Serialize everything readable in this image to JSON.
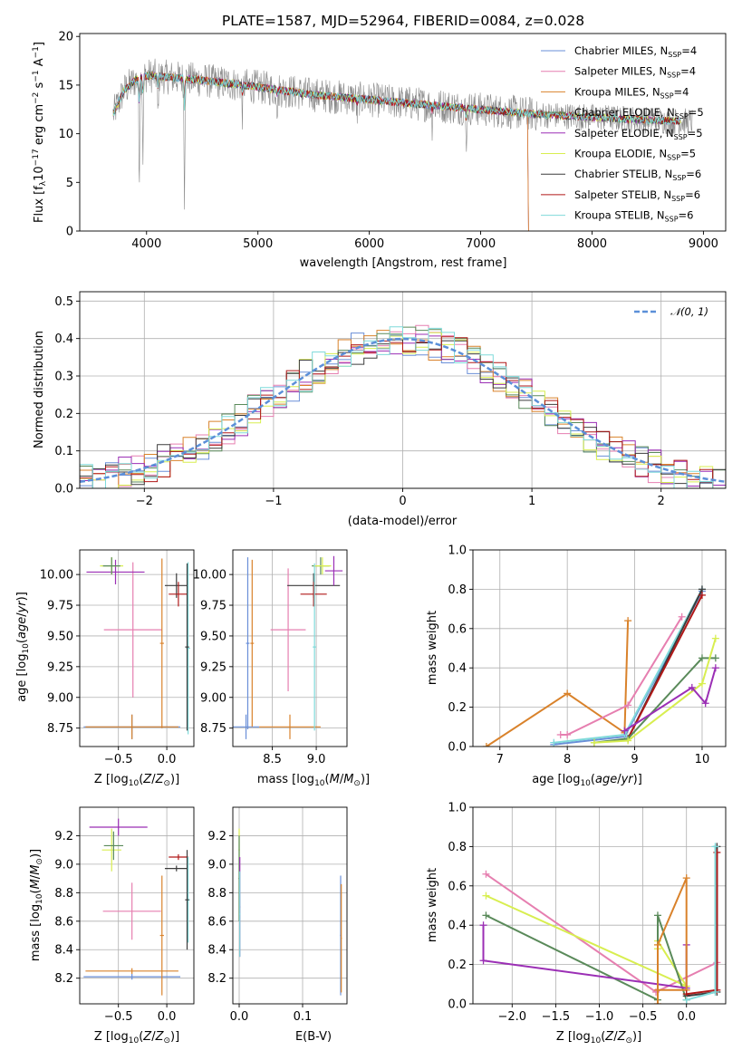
{
  "colors": {
    "Chabrier MILES": "#6a8fd8",
    "Salpeter MILES": "#e67fb0",
    "Kroupa MILES": "#d9822b",
    "Chabrier ELODIE": "#5a8a5a",
    "Salpeter ELODIE": "#9b2fb5",
    "Kroupa ELODIE": "#d8ee50",
    "Chabrier STELIB": "#3c3c3c",
    "Salpeter STELIB": "#b01818",
    "Kroupa STELIB": "#7fdada"
  },
  "chart_data": [
    {
      "id": "spectrum",
      "type": "line",
      "title": "PLATE=1587, MJD=52964, FIBERID=0084, z=0.028",
      "xlabel": "wavelength [Angstrom, rest frame]",
      "ylabel": "Flux [f_λ 10^-17 erg cm^-2 s^-1 A^-1]",
      "xlim": [
        3400,
        9200
      ],
      "ylim": [
        0,
        20.3
      ],
      "xticks": [
        4000,
        5000,
        6000,
        7000,
        8000,
        9000
      ],
      "yticks": [
        0,
        5,
        10,
        15,
        20
      ],
      "grid": false,
      "legend_position": "top-right",
      "legend": [
        {
          "name": "Chabrier MILES",
          "nssp": "4"
        },
        {
          "name": "Salpeter MILES",
          "nssp": "4"
        },
        {
          "name": "Kroupa MILES",
          "nssp": "4"
        },
        {
          "name": "Chabrier ELODIE",
          "nssp": "5"
        },
        {
          "name": "Salpeter ELODIE",
          "nssp": "5"
        },
        {
          "name": "Kroupa ELODIE",
          "nssp": "5"
        },
        {
          "name": "Chabrier STELIB",
          "nssp": "6"
        },
        {
          "name": "Salpeter STELIB",
          "nssp": "6"
        },
        {
          "name": "Kroupa STELIB",
          "nssp": "6"
        }
      ],
      "continuum_x": [
        3700,
        3800,
        3900,
        4000,
        4200,
        4500,
        5000,
        5500,
        6000,
        6500,
        7000,
        7500,
        8000,
        8500,
        9000
      ],
      "continuum_y": [
        12.0,
        14.5,
        15.5,
        16.0,
        15.8,
        15.5,
        14.8,
        14.0,
        13.5,
        13.0,
        12.5,
        12.0,
        11.7,
        11.4,
        11.2
      ]
    },
    {
      "id": "residuals",
      "type": "line",
      "xlabel": "(data-model)/error",
      "ylabel": "Normed distribution",
      "xlim": [
        -2.5,
        2.5
      ],
      "ylim": [
        0,
        0.525
      ],
      "xticks": [
        -2,
        -1,
        0,
        1,
        2
      ],
      "yticks": [
        0.0,
        0.1,
        0.2,
        0.3,
        0.4,
        0.5
      ],
      "grid": true,
      "legend_position": "top-right",
      "reference": {
        "name": "N(0,1)",
        "color": "#5b8fd8"
      }
    },
    {
      "id": "age-vs-Z",
      "type": "scatter",
      "xlabel": "Z [log10(Z/Z_sun)]",
      "ylabel": "age  [log10(age/yr)]",
      "xlim": [
        -0.9,
        0.28
      ],
      "ylim": [
        8.6,
        10.2
      ],
      "xticks": [
        -0.5,
        0.0
      ],
      "yticks": [
        8.75,
        9.0,
        9.25,
        9.5,
        9.75,
        10.0
      ],
      "grid": true,
      "points": [
        {
          "model": "Chabrier MILES",
          "x": -0.36,
          "xerr": 0.5,
          "y": 8.76,
          "yerr": 0.1
        },
        {
          "model": "Kroupa MILES",
          "x": -0.36,
          "xerr": 0.48,
          "y": 8.76,
          "yerr": 0.1
        },
        {
          "model": "Salpeter MILES",
          "x": -0.35,
          "xerr": 0.3,
          "y": 9.55,
          "yerr": 0.55
        },
        {
          "model": "Salpeter ELODIE",
          "x": -0.53,
          "xerr": 0.3,
          "y": 10.02,
          "yerr": 0.1
        },
        {
          "model": "Kroupa ELODIE",
          "x": -0.57,
          "xerr": 0.12,
          "y": 10.07,
          "yerr": 0.07
        },
        {
          "model": "Chabrier ELODIE",
          "x": -0.57,
          "xerr": 0.09,
          "y": 10.07,
          "yerr": 0.07
        },
        {
          "model": "Kroupa MILES",
          "x": -0.05,
          "xerr": 0.02,
          "y": 9.44,
          "yerr": 0.69
        },
        {
          "model": "Chabrier STELIB",
          "x": 0.1,
          "xerr": 0.12,
          "y": 9.91,
          "yerr": 0.1
        },
        {
          "model": "Salpeter STELIB",
          "x": 0.12,
          "xerr": 0.1,
          "y": 9.84,
          "yerr": 0.1
        },
        {
          "model": "Kroupa STELIB",
          "x": 0.22,
          "xerr": 0.02,
          "y": 9.4,
          "yerr": 0.7
        },
        {
          "model": "Chabrier STELIB",
          "x": 0.21,
          "xerr": 0.02,
          "y": 9.41,
          "yerr": 0.68
        }
      ]
    },
    {
      "id": "age-vs-mass",
      "type": "scatter",
      "xlabel": "mass [log10(M/M_sun)]",
      "ylabel": "",
      "xlim": [
        8.05,
        9.35
      ],
      "ylim": [
        8.6,
        10.2
      ],
      "xticks": [
        8.5,
        9.0
      ],
      "yticks": [
        8.75,
        9.0,
        9.25,
        9.5,
        9.75,
        10.0
      ],
      "grid": true,
      "points": [
        {
          "model": "Chabrier MILES",
          "x": 8.2,
          "xerr": 0.15,
          "y": 8.76,
          "yerr": 0.1
        },
        {
          "model": "Kroupa MILES",
          "x": 8.7,
          "xerr": 0.35,
          "y": 8.76,
          "yerr": 0.1
        },
        {
          "model": "Chabrier MILES",
          "x": 8.22,
          "xerr": 0.02,
          "y": 9.44,
          "yerr": 0.7
        },
        {
          "model": "Kroupa MILES",
          "x": 8.27,
          "xerr": 0.02,
          "y": 9.44,
          "yerr": 0.68
        },
        {
          "model": "Salpeter MILES",
          "x": 8.68,
          "xerr": 0.2,
          "y": 9.55,
          "yerr": 0.5
        },
        {
          "model": "Chabrier STELIB",
          "x": 8.97,
          "xerr": 0.3,
          "y": 9.91,
          "yerr": 0.1
        },
        {
          "model": "Salpeter STELIB",
          "x": 8.97,
          "xerr": 0.15,
          "y": 9.84,
          "yerr": 0.1
        },
        {
          "model": "Chabrier ELODIE",
          "x": 9.05,
          "xerr": 0.1,
          "y": 10.07,
          "yerr": 0.07
        },
        {
          "model": "Kroupa ELODIE",
          "x": 9.07,
          "xerr": 0.1,
          "y": 10.07,
          "yerr": 0.07
        },
        {
          "model": "Salpeter ELODIE",
          "x": 9.2,
          "xerr": 0.1,
          "y": 10.03,
          "yerr": 0.12
        },
        {
          "model": "Kroupa STELIB",
          "x": 8.98,
          "xerr": 0.02,
          "y": 9.41,
          "yerr": 0.68
        }
      ]
    },
    {
      "id": "weight-vs-age",
      "type": "line",
      "xlabel": "age  [log10(age/yr)]",
      "ylabel": "mass weight",
      "xlim": [
        6.6,
        10.35
      ],
      "ylim": [
        0,
        1.0
      ],
      "xticks": [
        7,
        8,
        9,
        10
      ],
      "yticks": [
        0.0,
        0.2,
        0.4,
        0.6,
        0.8,
        1.0
      ],
      "grid": true,
      "series": [
        {
          "model": "Kroupa MILES",
          "x": [
            6.8,
            8.0,
            8.85,
            8.9
          ],
          "y": [
            0.0,
            0.27,
            0.07,
            0.64
          ]
        },
        {
          "model": "Salpeter MILES",
          "x": [
            7.9,
            8.0,
            8.9,
            9.7
          ],
          "y": [
            0.06,
            0.06,
            0.21,
            0.66
          ]
        },
        {
          "model": "Chabrier MILES",
          "x": [
            7.8,
            8.85,
            10.0
          ],
          "y": [
            0.01,
            0.05,
            0.79
          ]
        },
        {
          "model": "Kroupa STELIB",
          "x": [
            7.8,
            8.85,
            10.0
          ],
          "y": [
            0.02,
            0.06,
            0.8
          ]
        },
        {
          "model": "Chabrier STELIB",
          "x": [
            8.9,
            10.0
          ],
          "y": [
            0.04,
            0.8
          ]
        },
        {
          "model": "Salpeter STELIB",
          "x": [
            8.9,
            10.0
          ],
          "y": [
            0.04,
            0.77
          ]
        },
        {
          "model": "Chabrier ELODIE",
          "x": [
            8.4,
            8.9,
            10.0,
            10.2
          ],
          "y": [
            0.02,
            0.04,
            0.45,
            0.45
          ]
        },
        {
          "model": "Kroupa ELODIE",
          "x": [
            8.4,
            8.9,
            10.0,
            10.2
          ],
          "y": [
            0.02,
            0.03,
            0.32,
            0.55
          ]
        },
        {
          "model": "Salpeter ELODIE",
          "x": [
            8.85,
            9.85,
            10.05,
            10.2
          ],
          "y": [
            0.08,
            0.3,
            0.22,
            0.4
          ]
        }
      ]
    },
    {
      "id": "mass-vs-Z",
      "type": "scatter",
      "xlabel": "Z [log10(Z/Z_sun)]",
      "ylabel": "mass [log10(M/M_sun)]",
      "xlim": [
        -0.9,
        0.28
      ],
      "ylim": [
        8.02,
        9.4
      ],
      "xticks": [
        -0.5,
        0.0
      ],
      "yticks": [
        8.2,
        8.4,
        8.6,
        8.8,
        9.0,
        9.2
      ],
      "grid": true,
      "points": [
        {
          "model": "Kroupa MILES",
          "x": -0.36,
          "xerr": 0.48,
          "y": 8.25,
          "yerr": 0.02
        },
        {
          "model": "Chabrier MILES",
          "x": -0.36,
          "xerr": 0.5,
          "y": 8.21,
          "yerr": 0.02
        },
        {
          "model": "Salpeter MILES",
          "x": -0.36,
          "xerr": 0.3,
          "y": 8.67,
          "yerr": 0.2
        },
        {
          "model": "Kroupa ELODIE",
          "x": -0.57,
          "xerr": 0.1,
          "y": 9.1,
          "yerr": 0.15
        },
        {
          "model": "Chabrier ELODIE",
          "x": -0.55,
          "xerr": 0.1,
          "y": 9.13,
          "yerr": 0.1
        },
        {
          "model": "Salpeter ELODIE",
          "x": -0.5,
          "xerr": 0.3,
          "y": 9.26,
          "yerr": 0.06
        },
        {
          "model": "Kroupa MILES",
          "x": -0.05,
          "xerr": 0.02,
          "y": 8.5,
          "yerr": 0.42
        },
        {
          "model": "Salpeter STELIB",
          "x": 0.12,
          "xerr": 0.1,
          "y": 9.05,
          "yerr": 0.02
        },
        {
          "model": "Chabrier STELIB",
          "x": 0.1,
          "xerr": 0.12,
          "y": 8.97,
          "yerr": 0.02
        },
        {
          "model": "Kroupa STELIB",
          "x": 0.22,
          "xerr": 0.02,
          "y": 8.75,
          "yerr": 0.3
        },
        {
          "model": "Chabrier STELIB",
          "x": 0.21,
          "xerr": 0.02,
          "y": 8.75,
          "yerr": 0.35
        }
      ]
    },
    {
      "id": "mass-vs-ebv",
      "type": "scatter",
      "xlabel": "E(B-V)",
      "ylabel": "",
      "xlim": [
        -0.01,
        0.17
      ],
      "ylim": [
        8.02,
        9.4
      ],
      "xticks": [
        0.0,
        0.1
      ],
      "yticks": [
        8.2,
        8.4,
        8.6,
        8.8,
        9.0,
        9.2
      ],
      "grid": true,
      "points": [
        {
          "model": "Kroupa ELODIE",
          "x": 0.0,
          "xerr": 0.001,
          "y": 9.1,
          "yerr": 0.15
        },
        {
          "model": "Chabrier ELODIE",
          "x": 0.0,
          "xerr": 0.001,
          "y": 8.9,
          "yerr": 0.3
        },
        {
          "model": "Salpeter ELODIE",
          "x": 0.001,
          "xerr": 0.001,
          "y": 8.7,
          "yerr": 0.35
        },
        {
          "model": "Kroupa STELIB",
          "x": 0.001,
          "xerr": 0.001,
          "y": 8.65,
          "yerr": 0.3
        },
        {
          "model": "Chabrier MILES",
          "x": 0.16,
          "xerr": 0.001,
          "y": 8.5,
          "yerr": 0.42
        },
        {
          "model": "Kroupa MILES",
          "x": 0.161,
          "xerr": 0.001,
          "y": 8.48,
          "yerr": 0.38
        }
      ]
    },
    {
      "id": "weight-vs-Z",
      "type": "line",
      "xlabel": "Z [log10(Z/Z_sun)]",
      "ylabel": "mass weight",
      "xlim": [
        -2.45,
        0.45
      ],
      "ylim": [
        0,
        1.0
      ],
      "xticks": [
        -2.0,
        -1.5,
        -1.0,
        -0.5,
        0.0
      ],
      "yticks": [
        0.0,
        0.2,
        0.4,
        0.6,
        0.8,
        1.0
      ],
      "grid": true,
      "series": [
        {
          "model": "Salpeter MILES",
          "x": [
            -2.3,
            -0.35,
            0.35
          ],
          "y": [
            0.66,
            0.06,
            0.21
          ]
        },
        {
          "model": "Kroupa ELODIE",
          "x": [
            -2.3,
            0.0,
            -0.33,
            -0.33
          ],
          "y": [
            0.55,
            0.09,
            0.32,
            0.28
          ]
        },
        {
          "model": "Chabrier ELODIE",
          "x": [
            -2.3,
            -0.33,
            -0.33,
            0.0
          ],
          "y": [
            0.45,
            0.02,
            0.45,
            0.02
          ]
        },
        {
          "model": "Salpeter ELODIE",
          "x": [
            -2.33,
            -2.33,
            0.0,
            0.0
          ],
          "y": [
            0.4,
            0.22,
            0.08,
            0.3
          ]
        },
        {
          "model": "Kroupa MILES",
          "x": [
            -0.33,
            -0.33,
            0.0,
            0.0,
            -0.33
          ],
          "y": [
            0.0,
            0.3,
            0.64,
            0.07,
            0.07
          ]
        },
        {
          "model": "Chabrier STELIB",
          "x": [
            0.0,
            0.35,
            0.35
          ],
          "y": [
            0.04,
            0.06,
            0.8
          ]
        },
        {
          "model": "Salpeter STELIB",
          "x": [
            0.0,
            0.35,
            0.35
          ],
          "y": [
            0.05,
            0.07,
            0.77
          ]
        },
        {
          "model": "Kroupa STELIB",
          "x": [
            0.0,
            0.33,
            0.33
          ],
          "y": [
            0.02,
            0.06,
            0.8
          ]
        }
      ]
    }
  ]
}
